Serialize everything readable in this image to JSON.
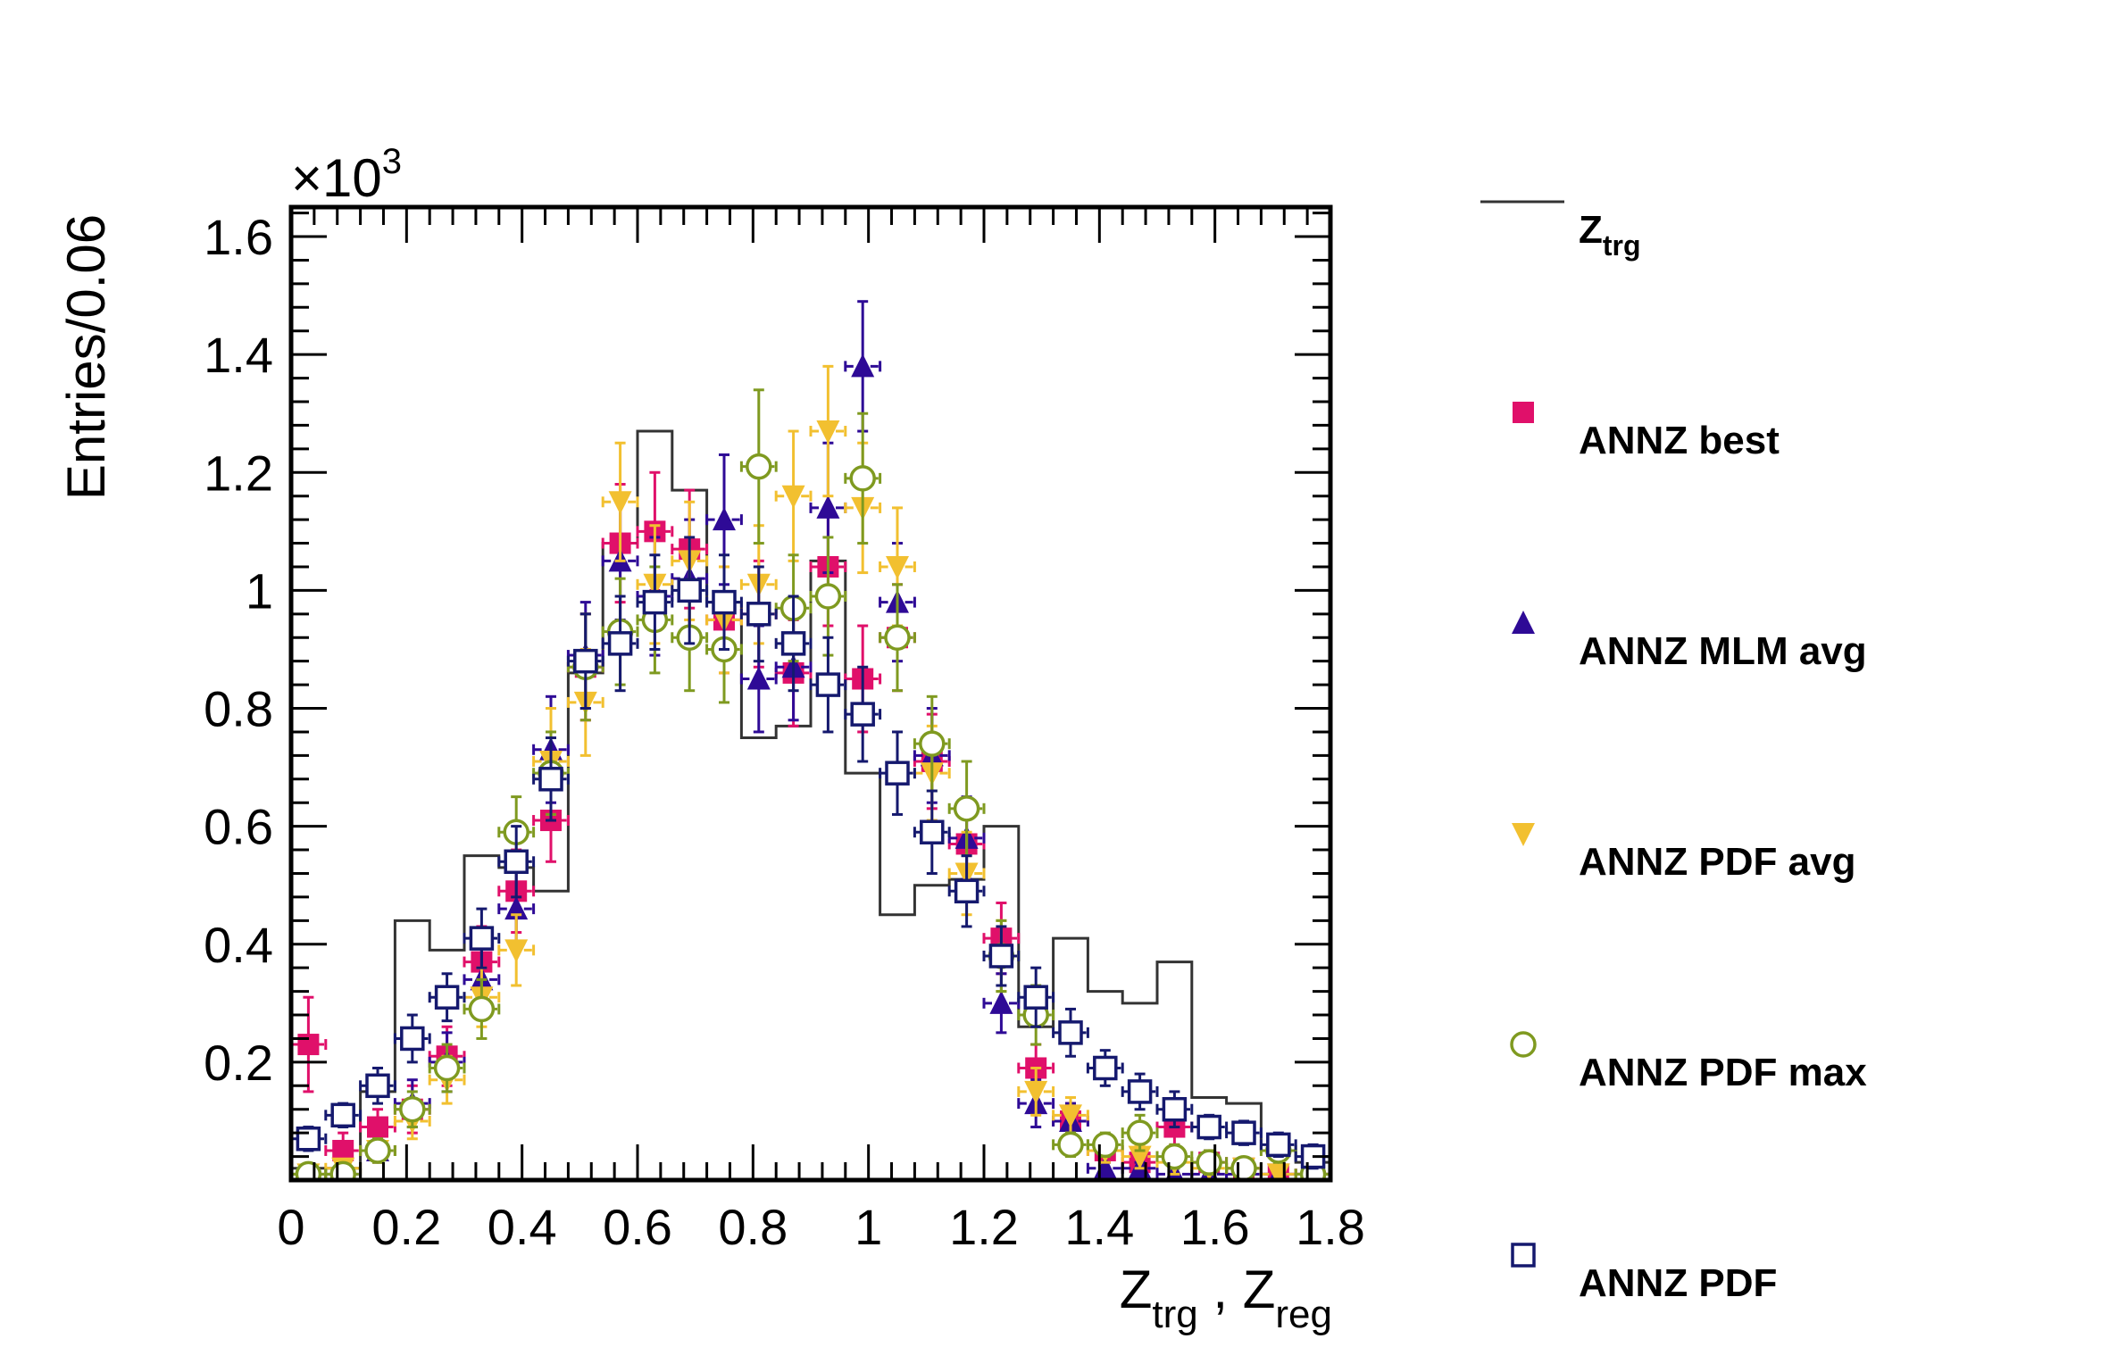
{
  "chart_data": {
    "type": "scatter",
    "bin_width": 0.06,
    "xlim": [
      0,
      1.8
    ],
    "ylim": [
      0,
      1.65
    ],
    "y_multiplier_label": "×10",
    "y_multiplier_exp": "3",
    "ylabel": "Entries/0.06",
    "xlabel": {
      "parts": [
        {
          "text": "Z",
          "sub": "trg"
        },
        {
          "text": " , ",
          "sub": ""
        },
        {
          "text": "Z",
          "sub": "reg"
        }
      ]
    },
    "x_ticks": [
      "0",
      "0.2",
      "0.4",
      "0.6",
      "0.8",
      "1",
      "1.2",
      "1.4",
      "1.6",
      "1.8"
    ],
    "x_tick_values": [
      0,
      0.2,
      0.4,
      0.6,
      0.8,
      1.0,
      1.2,
      1.4,
      1.6,
      1.8
    ],
    "y_ticks": [
      "0.2",
      "0.4",
      "0.6",
      "0.8",
      "1",
      "1.2",
      "1.4",
      "1.6"
    ],
    "y_tick_values": [
      0.2,
      0.4,
      0.6,
      0.8,
      1.0,
      1.2,
      1.4,
      1.6
    ],
    "grid": false,
    "legend_position": "right, outside plot",
    "series": [
      {
        "name": "Z",
        "name_sub": "trg",
        "style": "histogram",
        "color": "#333333",
        "edges": [
          0,
          0.06,
          0.12,
          0.18,
          0.24,
          0.3,
          0.36,
          0.42,
          0.48,
          0.54,
          0.6,
          0.66,
          0.72,
          0.78,
          0.84,
          0.9,
          0.96,
          1.02,
          1.08,
          1.14,
          1.2,
          1.26,
          1.32,
          1.38,
          1.44,
          1.5,
          1.56,
          1.62,
          1.68,
          1.74,
          1.8
        ],
        "values": [
          0.02,
          0.02,
          0.15,
          0.44,
          0.39,
          0.55,
          0.53,
          0.49,
          0.86,
          1.08,
          1.27,
          1.17,
          0.98,
          0.75,
          0.77,
          1.05,
          0.69,
          0.45,
          0.5,
          0.51,
          0.6,
          0.26,
          0.41,
          0.32,
          0.3,
          0.37,
          0.14,
          0.13,
          0.05,
          0.03
        ]
      },
      {
        "name": "ANNZ best",
        "style": "marker",
        "marker": "filled-square",
        "color": "#e0106a",
        "x": [
          0.03,
          0.09,
          0.15,
          0.21,
          0.27,
          0.33,
          0.39,
          0.45,
          0.51,
          0.57,
          0.63,
          0.69,
          0.75,
          0.81,
          0.87,
          0.93,
          0.99,
          1.05,
          1.11,
          1.17,
          1.23,
          1.29,
          1.35,
          1.41,
          1.47,
          1.53,
          1.59,
          1.65,
          1.71,
          1.77
        ],
        "y": [
          0.23,
          0.05,
          0.09,
          0.12,
          0.21,
          0.37,
          0.49,
          0.61,
          0.87,
          1.08,
          1.1,
          1.07,
          0.95,
          0.96,
          0.86,
          1.04,
          0.85,
          0.92,
          0.71,
          0.57,
          0.41,
          0.19,
          0.1,
          0.05,
          0.03,
          0.09,
          0.03,
          0.02,
          0.01,
          0.01
        ],
        "err": [
          0.08,
          0.03,
          0.03,
          0.04,
          0.05,
          0.06,
          0.07,
          0.07,
          0.09,
          0.1,
          0.1,
          0.1,
          0.09,
          0.09,
          0.09,
          0.1,
          0.09,
          0.09,
          0.08,
          0.07,
          0.06,
          0.04,
          0.03,
          0.02,
          0.02,
          0.03,
          0.02,
          0.01,
          0.01,
          0.01
        ]
      },
      {
        "name": "ANNZ MLM avg",
        "style": "marker",
        "marker": "filled-triangle-up",
        "color": "#2e0a96",
        "x": [
          0.03,
          0.09,
          0.15,
          0.21,
          0.27,
          0.33,
          0.39,
          0.45,
          0.51,
          0.57,
          0.63,
          0.69,
          0.75,
          0.81,
          0.87,
          0.93,
          0.99,
          1.05,
          1.11,
          1.17,
          1.23,
          1.29,
          1.35,
          1.41,
          1.47,
          1.53,
          1.59,
          1.65,
          1.71,
          1.77
        ],
        "y": [
          0.01,
          0.01,
          0.05,
          0.13,
          0.2,
          0.34,
          0.46,
          0.73,
          0.89,
          1.05,
          0.99,
          1.02,
          1.12,
          0.85,
          0.87,
          1.14,
          1.38,
          0.98,
          0.72,
          0.58,
          0.3,
          0.13,
          0.1,
          0.02,
          0.02,
          0.01,
          0.01,
          0.01,
          0.01,
          0.01
        ],
        "err": [
          0.01,
          0.01,
          0.02,
          0.04,
          0.05,
          0.06,
          0.07,
          0.09,
          0.09,
          0.1,
          0.1,
          0.1,
          0.11,
          0.09,
          0.09,
          0.11,
          0.11,
          0.1,
          0.08,
          0.07,
          0.05,
          0.04,
          0.03,
          0.01,
          0.01,
          0.01,
          0.01,
          0.01,
          0.01,
          0.01
        ]
      },
      {
        "name": "ANNZ PDF avg",
        "style": "marker",
        "marker": "filled-triangle-down",
        "color": "#f2c030",
        "x": [
          0.03,
          0.09,
          0.15,
          0.21,
          0.27,
          0.33,
          0.39,
          0.45,
          0.51,
          0.57,
          0.63,
          0.69,
          0.75,
          0.81,
          0.87,
          0.93,
          0.99,
          1.05,
          1.11,
          1.17,
          1.23,
          1.29,
          1.35,
          1.41,
          1.47,
          1.53,
          1.59,
          1.65,
          1.71,
          1.77
        ],
        "y": [
          0.01,
          0.02,
          0.05,
          0.1,
          0.17,
          0.31,
          0.39,
          0.71,
          0.81,
          1.15,
          1.01,
          1.05,
          0.95,
          1.01,
          1.16,
          1.27,
          1.14,
          1.04,
          0.69,
          0.52,
          0.38,
          0.15,
          0.11,
          0.05,
          0.04,
          0.03,
          0.02,
          0.02,
          0.01,
          0.01
        ],
        "err": [
          0.01,
          0.01,
          0.02,
          0.03,
          0.04,
          0.05,
          0.06,
          0.09,
          0.09,
          0.1,
          0.1,
          0.1,
          0.09,
          0.1,
          0.11,
          0.11,
          0.11,
          0.1,
          0.08,
          0.07,
          0.06,
          0.04,
          0.03,
          0.02,
          0.02,
          0.02,
          0.01,
          0.01,
          0.01,
          0.01
        ]
      },
      {
        "name": "ANNZ PDF max",
        "style": "marker",
        "marker": "open-circle",
        "color": "#7f9a20",
        "x": [
          0.03,
          0.09,
          0.15,
          0.21,
          0.27,
          0.33,
          0.39,
          0.45,
          0.51,
          0.57,
          0.63,
          0.69,
          0.75,
          0.81,
          0.87,
          0.93,
          0.99,
          1.05,
          1.11,
          1.17,
          1.23,
          1.29,
          1.35,
          1.41,
          1.47,
          1.53,
          1.59,
          1.65,
          1.71,
          1.77
        ],
        "y": [
          0.01,
          0.01,
          0.05,
          0.12,
          0.19,
          0.29,
          0.59,
          0.69,
          0.87,
          0.93,
          0.95,
          0.92,
          0.9,
          1.21,
          0.97,
          0.99,
          1.19,
          0.92,
          0.74,
          0.63,
          0.38,
          0.28,
          0.06,
          0.06,
          0.08,
          0.04,
          0.03,
          0.02,
          0.05,
          0.01
        ],
        "err": [
          0.01,
          0.01,
          0.02,
          0.03,
          0.04,
          0.05,
          0.06,
          0.07,
          0.09,
          0.09,
          0.09,
          0.09,
          0.09,
          0.13,
          0.09,
          0.1,
          0.11,
          0.09,
          0.08,
          0.08,
          0.06,
          0.05,
          0.02,
          0.02,
          0.03,
          0.02,
          0.02,
          0.01,
          0.02,
          0.01
        ]
      },
      {
        "name": "ANNZ PDF",
        "style": "marker",
        "marker": "open-square",
        "color": "#15196e",
        "x": [
          0.03,
          0.09,
          0.15,
          0.21,
          0.27,
          0.33,
          0.39,
          0.45,
          0.51,
          0.57,
          0.63,
          0.69,
          0.75,
          0.81,
          0.87,
          0.93,
          0.99,
          1.05,
          1.11,
          1.17,
          1.23,
          1.29,
          1.35,
          1.41,
          1.47,
          1.53,
          1.59,
          1.65,
          1.71,
          1.77
        ],
        "y": [
          0.07,
          0.11,
          0.16,
          0.24,
          0.31,
          0.41,
          0.54,
          0.68,
          0.88,
          0.91,
          0.98,
          1.0,
          0.98,
          0.96,
          0.91,
          0.84,
          0.79,
          0.69,
          0.59,
          0.49,
          0.38,
          0.31,
          0.25,
          0.19,
          0.15,
          0.12,
          0.09,
          0.08,
          0.06,
          0.04
        ],
        "err": [
          0.02,
          0.02,
          0.03,
          0.04,
          0.04,
          0.05,
          0.06,
          0.07,
          0.08,
          0.08,
          0.08,
          0.09,
          0.08,
          0.08,
          0.08,
          0.08,
          0.08,
          0.07,
          0.07,
          0.06,
          0.05,
          0.05,
          0.04,
          0.03,
          0.03,
          0.03,
          0.02,
          0.02,
          0.02,
          0.02
        ]
      }
    ]
  }
}
